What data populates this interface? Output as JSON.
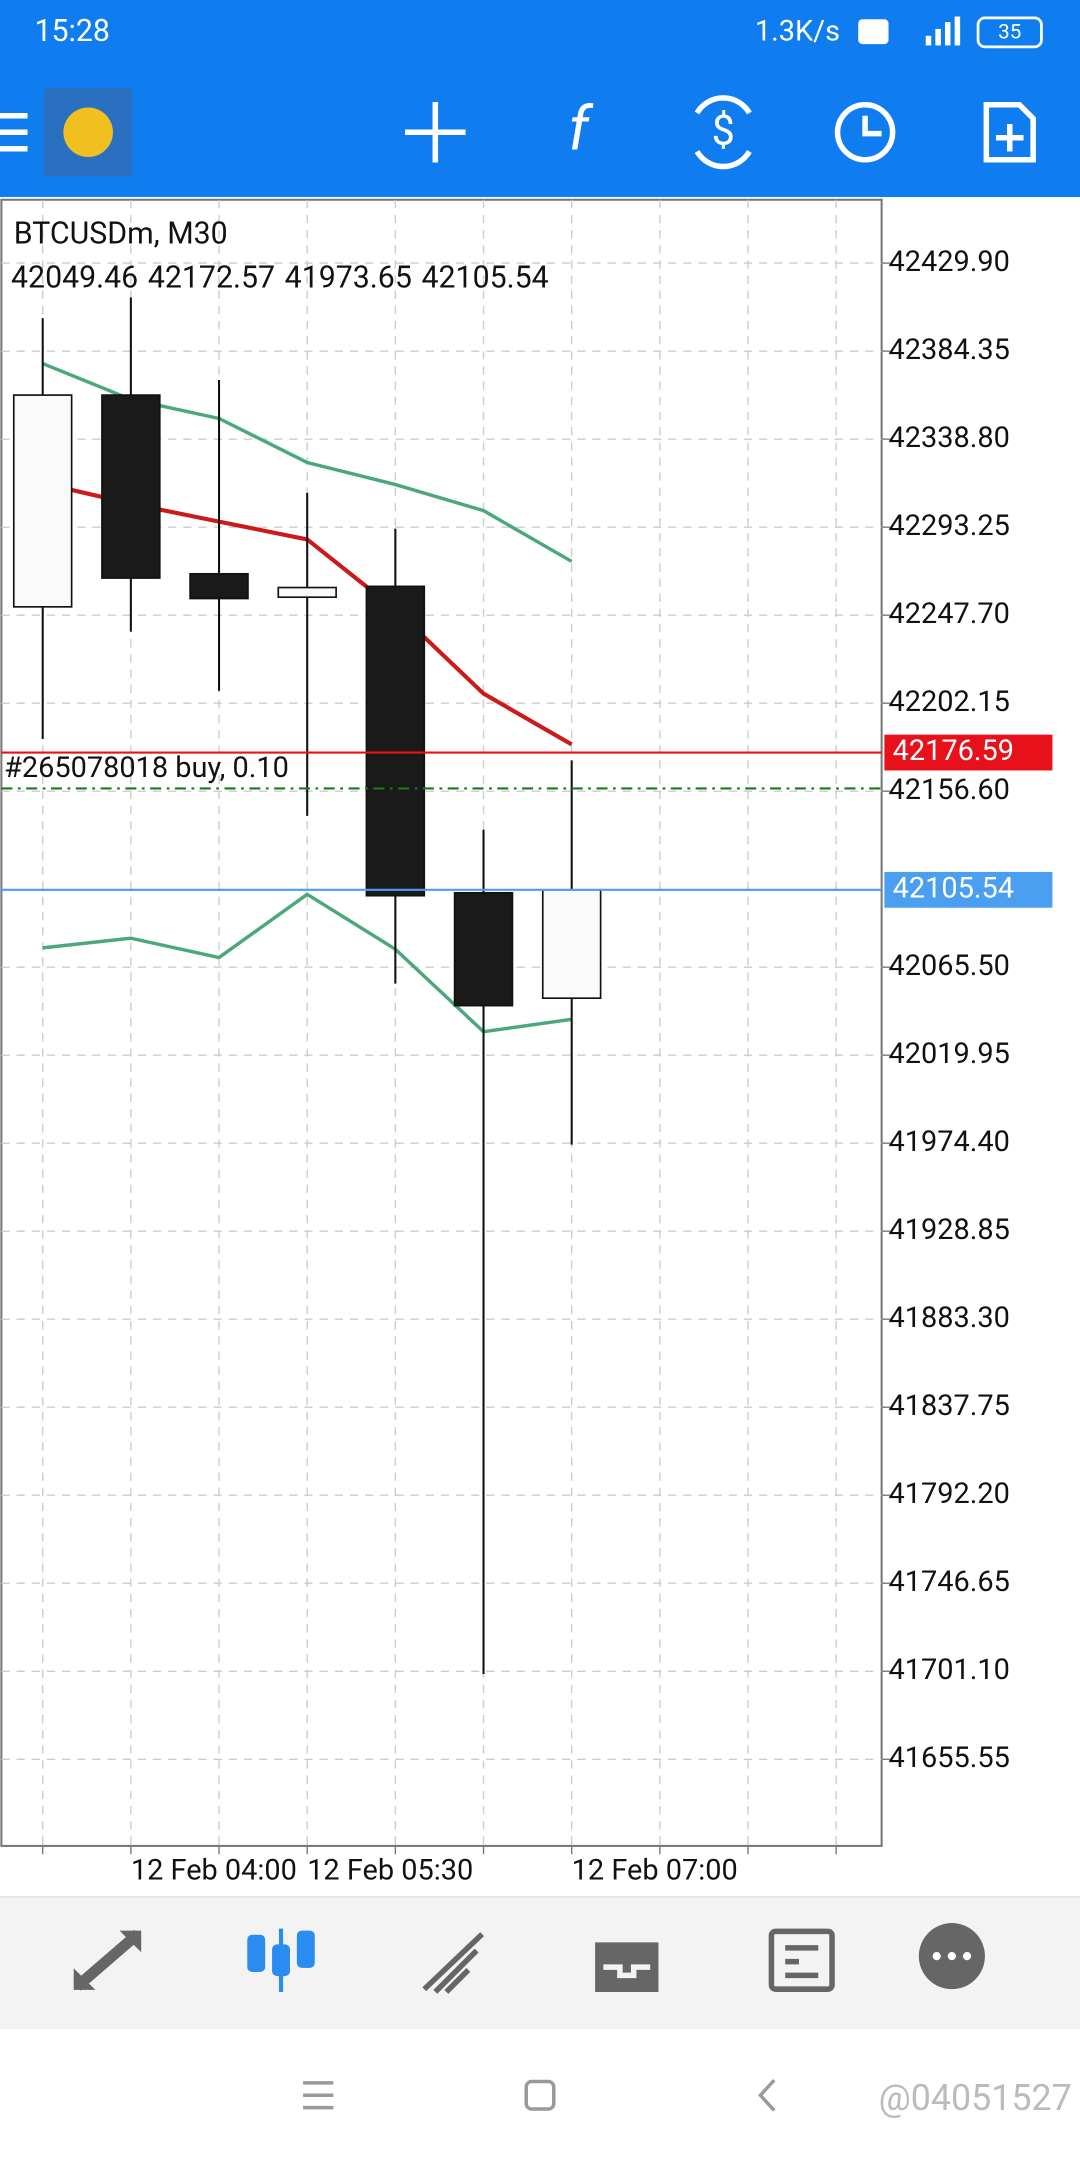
{
  "status_bar": {
    "time": "15:28",
    "speed": "1.3K/s",
    "battery": "35"
  },
  "chart_data": {
    "type": "candlestick",
    "title": "BTCUSDm, M30",
    "categories": [
      null,
      "12 Feb 04:00",
      null,
      "12 Feb 05:30",
      null,
      null,
      "12 Feb 07:00",
      null,
      null,
      null
    ],
    "open": [
      42252.0,
      42361.6,
      42269.1,
      42257.0,
      42262.6,
      42104.0,
      42049.46,
      null,
      null,
      null
    ],
    "high": [
      42401.4,
      42412.1,
      42369.4,
      42311.0,
      42292.5,
      42136.7,
      42172.57,
      null,
      null,
      null
    ],
    "low": [
      42183.6,
      42239.2,
      42208.6,
      42143.8,
      42057.0,
      41699.7,
      41973.65,
      null,
      null,
      null
    ],
    "close": [
      42361.6,
      42266.9,
      42256.3,
      42262.0,
      42102.5,
      42045.6,
      42105.54,
      null,
      null,
      null
    ],
    "up_color": "#fafafa",
    "down_color": "#1a1a1a",
    "series": [
      {
        "color": "#cc1a1a",
        "values": [
          42316.0,
          42305.4,
          42296.1,
          42286.9,
          42250.6,
          42207.1,
          42180.8,
          null,
          null,
          null
        ]
      },
      {
        "color": "#4aa87a",
        "values": [
          42377.9,
          42359.4,
          42349.5,
          42326.7,
          42315.3,
          42301.8,
          42275.5,
          null,
          null,
          null
        ]
      },
      {
        "color": "#4aa87a",
        "values": [
          42075.5,
          42080.5,
          42070.5,
          42103.2,
          42074.8,
          42032.1,
          42038.5,
          null,
          null,
          null
        ]
      }
    ],
    "bid_price": 42176.59,
    "bid_color": "#e8101a",
    "last_price": 42105.54,
    "last_color": "#4a9ff0",
    "order": {
      "label": "#265078018 buy, 0.10",
      "price": 42158.0,
      "color": "#1a7a1a"
    },
    "ylim": [
      41610.7,
      42462.7
    ],
    "yticks": [
      {
        "value": 42429.9,
        "label": "42429.90"
      },
      {
        "value": 42384.35,
        "label": "42384.35"
      },
      {
        "value": 42338.8,
        "label": "42338.80"
      },
      {
        "value": 42293.25,
        "label": "42293.25"
      },
      {
        "value": 42247.7,
        "label": "42247.70"
      },
      {
        "value": 42202.15,
        "label": "42202.15"
      },
      {
        "value": 42156.6,
        "label": "42156.60"
      },
      {
        "value": 42065.5,
        "label": "42065.50"
      },
      {
        "value": 42019.95,
        "label": "42019.95"
      },
      {
        "value": 41974.4,
        "label": "41974.40"
      },
      {
        "value": 41928.85,
        "label": "41928.85"
      },
      {
        "value": 41883.3,
        "label": "41883.30"
      },
      {
        "value": 41837.75,
        "label": "41837.75"
      },
      {
        "value": 41792.2,
        "label": "41792.20"
      },
      {
        "value": 41746.65,
        "label": "41746.65"
      },
      {
        "value": 41701.1,
        "label": "41701.10"
      },
      {
        "value": 41655.55,
        "label": "41655.55"
      }
    ],
    "grid": true
  },
  "watermark": "@04051527"
}
